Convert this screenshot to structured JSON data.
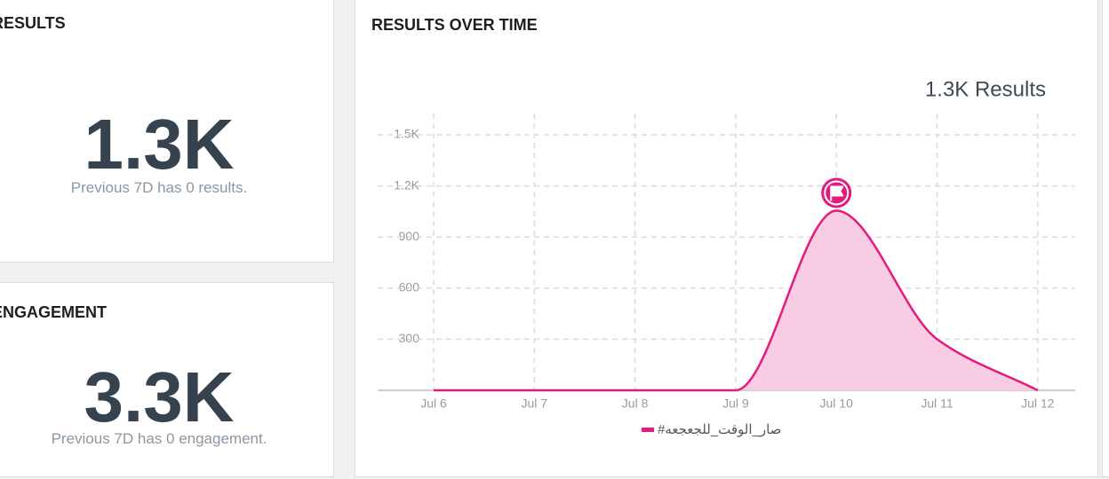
{
  "panels": [
    {
      "title": "RESULTS",
      "value": "1.3K",
      "note": "Previous 7D has 0 results."
    },
    {
      "title": "ENGAGEMENT",
      "value": "3.3K",
      "note": "Previous 7D has 0 engagement."
    }
  ],
  "chart_panel": {
    "title": "RESULTS OVER TIME"
  },
  "chart_data": {
    "type": "area",
    "annotation": "1.3K Results",
    "categories": [
      "Jul 6",
      "Jul 7",
      "Jul 8",
      "Jul 9",
      "Jul 10",
      "Jul 11",
      "Jul 12"
    ],
    "series": [
      {
        "name": "#صار_الوقت_للجعجعه",
        "color": "#e5197e",
        "fill": "#f8cce2",
        "values": [
          0,
          0,
          0,
          0,
          1055,
          300,
          0
        ]
      }
    ],
    "ylim": [
      0,
      1625
    ],
    "yticks": [
      {
        "value": 1500,
        "label": "1.5K"
      },
      {
        "value": 1200,
        "label": "1.2K"
      },
      900,
      600,
      300
    ],
    "grid": true,
    "smooth": true
  }
}
